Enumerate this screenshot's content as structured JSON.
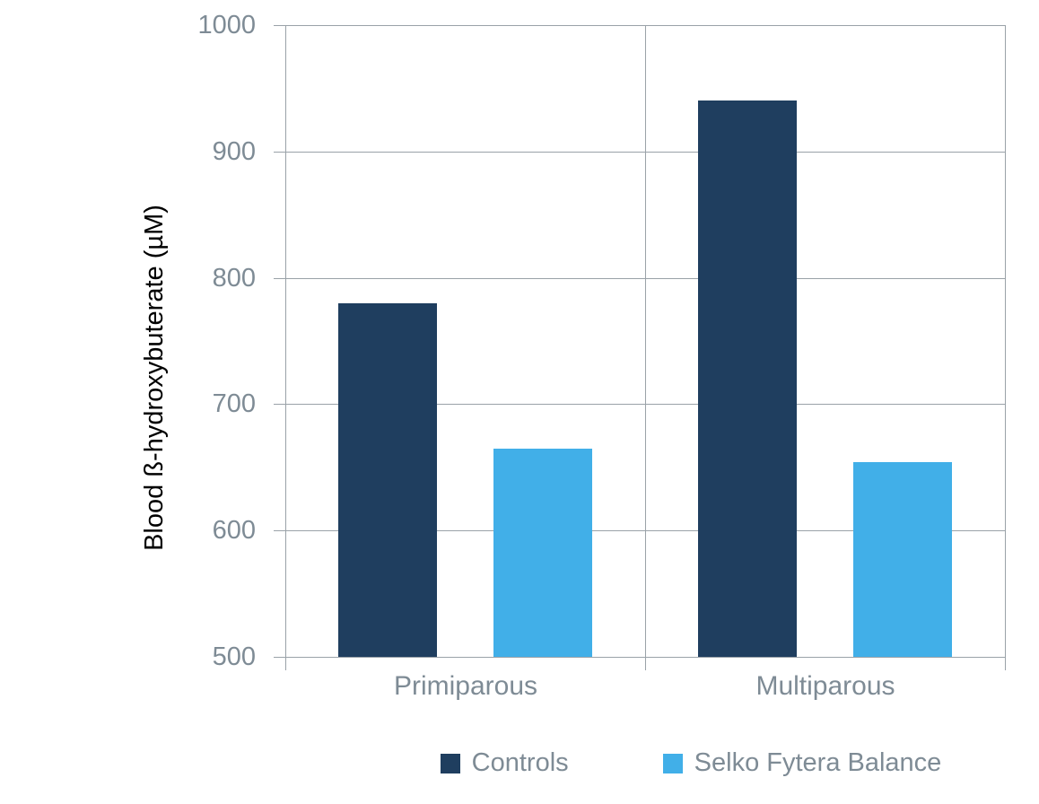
{
  "chart_data": {
    "type": "bar",
    "title": "",
    "categories": [
      "Primiparous",
      "Multiparous"
    ],
    "series": [
      {
        "name": "Controls",
        "color": "#1F3E5F",
        "values": [
          780,
          940
        ]
      },
      {
        "name": "Selko Fytera Balance",
        "color": "#41AFE8",
        "values": [
          665,
          654
        ]
      }
    ],
    "xlabel": "",
    "ylabel": "Blood ß-hydroxybuterate (µM)",
    "ylim": [
      500,
      1000
    ],
    "yticks": [
      500,
      600,
      700,
      800,
      900,
      1000
    ],
    "grid": "horizontal",
    "legend_position": "bottom"
  },
  "colors": {
    "background": "#FFFFFF",
    "grid_line": "#9AA2A8",
    "axis_text": "#7E8B95",
    "controls_bar": "#1F3E5F",
    "selko_bar": "#41AFE8"
  }
}
